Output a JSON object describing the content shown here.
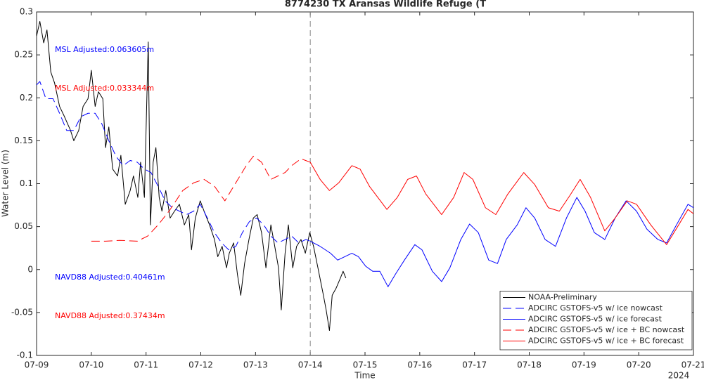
{
  "chart_data": {
    "type": "line",
    "title": "8774230 TX Aransas Wildlife Refuge (T",
    "xlabel": "Time",
    "ylabel": "Water Level (m)",
    "year_label": "2024",
    "xlim": [
      9,
      21
    ],
    "xticks": [
      {
        "value": 9,
        "label": "07-09"
      },
      {
        "value": 10,
        "label": "07-10"
      },
      {
        "value": 11,
        "label": "07-11"
      },
      {
        "value": 12,
        "label": "07-12"
      },
      {
        "value": 13,
        "label": "07-13"
      },
      {
        "value": 14,
        "label": "07-14"
      },
      {
        "value": 15,
        "label": "07-15"
      },
      {
        "value": 16,
        "label": "07-16"
      },
      {
        "value": 17,
        "label": "07-17"
      },
      {
        "value": 18,
        "label": "07-18"
      },
      {
        "value": 19,
        "label": "07-19"
      },
      {
        "value": 20,
        "label": "07-20"
      },
      {
        "value": 21,
        "label": "07-21"
      }
    ],
    "ylim": [
      -0.1,
      0.3
    ],
    "yticks": [
      -0.1,
      -0.05,
      0,
      0.05,
      0.1,
      0.15,
      0.2,
      0.25,
      0.3
    ],
    "grid": false,
    "legend_location": "lower right",
    "vline_x": 14,
    "vline_color": "#888888",
    "annotations": [
      {
        "text": "MSL Adjusted:0.063605m",
        "color": "#0000ff"
      },
      {
        "text": "MSL Adjusted:0.033344m",
        "color": "#ff0000"
      },
      {
        "text": "NAVD88 Adjusted:0.40461m",
        "color": "#0000ff"
      },
      {
        "text": "NAVD88 Adjusted:0.37434m",
        "color": "#ff0000"
      }
    ],
    "series": [
      {
        "name": "NOAA-Preliminary",
        "color": "#000000",
        "linestyle": "solid",
        "x": [
          9.0,
          9.06,
          9.13,
          9.19,
          9.26,
          9.33,
          9.42,
          9.51,
          9.62,
          9.68,
          9.77,
          9.85,
          9.94,
          10.0,
          10.07,
          10.13,
          10.21,
          10.26,
          10.32,
          10.39,
          10.48,
          10.54,
          10.62,
          10.71,
          10.77,
          10.85,
          10.9,
          10.97,
          11.04,
          11.08,
          11.13,
          11.18,
          11.24,
          11.29,
          11.36,
          11.44,
          11.52,
          11.61,
          11.7,
          11.78,
          11.83,
          11.9,
          11.99,
          12.06,
          12.16,
          12.25,
          12.31,
          12.39,
          12.47,
          12.52,
          12.6,
          12.67,
          12.73,
          12.8,
          12.88,
          12.96,
          13.03,
          13.11,
          13.19,
          13.28,
          13.34,
          13.42,
          13.47,
          13.54,
          13.6,
          13.68,
          13.75,
          13.83,
          13.91,
          13.99,
          14.06,
          14.14,
          14.19,
          14.24,
          14.29,
          14.35,
          14.4,
          14.47,
          14.55,
          14.6,
          14.65
        ],
        "values": [
          0.272,
          0.289,
          0.264,
          0.279,
          0.23,
          0.217,
          0.19,
          0.178,
          0.162,
          0.15,
          0.162,
          0.19,
          0.199,
          0.232,
          0.19,
          0.207,
          0.199,
          0.142,
          0.166,
          0.117,
          0.109,
          0.133,
          0.076,
          0.092,
          0.109,
          0.084,
          0.125,
          0.084,
          0.265,
          0.052,
          0.125,
          0.142,
          0.084,
          0.068,
          0.092,
          0.06,
          0.068,
          0.076,
          0.052,
          0.064,
          0.023,
          0.06,
          0.08,
          0.068,
          0.052,
          0.035,
          0.015,
          0.027,
          0.002,
          0.019,
          0.031,
          -0.006,
          -0.03,
          0.007,
          0.035,
          0.06,
          0.064,
          0.043,
          0.002,
          0.052,
          0.031,
          0.002,
          -0.047,
          0.019,
          0.052,
          0.002,
          0.027,
          0.035,
          0.019,
          0.043,
          0.027,
          0.002,
          -0.014,
          -0.03,
          -0.047,
          -0.071,
          -0.03,
          -0.022,
          -0.01,
          -0.002,
          -0.01
        ]
      },
      {
        "name": "ADCIRC GSTOFS-v5 w/ ice nowcast",
        "color": "#0000ff",
        "linestyle": "dashed",
        "x": [
          9.0,
          9.06,
          9.17,
          9.3,
          9.42,
          9.55,
          9.68,
          9.81,
          9.94,
          10.07,
          10.19,
          10.32,
          10.45,
          10.58,
          10.71,
          10.84,
          10.97,
          11.09,
          11.22,
          11.35,
          11.48,
          11.61,
          11.74,
          11.87,
          11.99,
          12.12,
          12.25,
          12.38,
          12.51,
          12.64,
          12.76,
          12.89,
          13.02,
          13.15,
          13.28,
          13.41,
          13.54,
          13.66,
          13.79,
          13.92,
          14.0
        ],
        "values": [
          0.215,
          0.219,
          0.199,
          0.199,
          0.182,
          0.162,
          0.162,
          0.178,
          0.182,
          0.182,
          0.17,
          0.15,
          0.132,
          0.121,
          0.127,
          0.125,
          0.117,
          0.113,
          0.097,
          0.08,
          0.072,
          0.068,
          0.064,
          0.068,
          0.076,
          0.06,
          0.043,
          0.031,
          0.023,
          0.027,
          0.043,
          0.056,
          0.06,
          0.052,
          0.039,
          0.031,
          0.035,
          0.039,
          0.031,
          0.035,
          0.033
        ]
      },
      {
        "name": "ADCIRC GSTOFS-v5 w/ ice forecast",
        "color": "#0000ff",
        "linestyle": "solid",
        "x": [
          14.0,
          14.18,
          14.37,
          14.5,
          14.63,
          14.76,
          14.88,
          15.01,
          15.14,
          15.27,
          15.42,
          15.55,
          15.72,
          15.91,
          16.04,
          16.23,
          16.4,
          16.55,
          16.75,
          16.91,
          17.07,
          17.26,
          17.42,
          17.58,
          17.78,
          17.94,
          18.1,
          18.29,
          18.48,
          18.68,
          18.87,
          19.02,
          19.19,
          19.38,
          19.57,
          19.77,
          19.96,
          20.15,
          20.35,
          20.51,
          20.69,
          20.9,
          21.0
        ],
        "values": [
          0.033,
          0.027,
          0.019,
          0.011,
          0.015,
          0.019,
          0.015,
          0.004,
          -0.002,
          -0.002,
          -0.02,
          -0.006,
          0.011,
          0.029,
          0.023,
          -0.002,
          -0.014,
          0.002,
          0.035,
          0.053,
          0.043,
          0.011,
          0.007,
          0.035,
          0.052,
          0.072,
          0.06,
          0.035,
          0.027,
          0.06,
          0.084,
          0.068,
          0.043,
          0.035,
          0.06,
          0.08,
          0.068,
          0.047,
          0.035,
          0.031,
          0.052,
          0.076,
          0.072
        ]
      },
      {
        "name": "ADCIRC GSTOFS-v5 w/ ice + BC nowcast",
        "color": "#ff0000",
        "linestyle": "dashed",
        "x": [
          10.0,
          10.26,
          10.52,
          10.84,
          11.03,
          11.22,
          11.42,
          11.67,
          11.87,
          12.06,
          12.25,
          12.44,
          12.64,
          12.83,
          12.96,
          13.11,
          13.28,
          13.41,
          13.54,
          13.66,
          13.83,
          14.0
        ],
        "values": [
          0.033,
          0.033,
          0.034,
          0.033,
          0.039,
          0.052,
          0.068,
          0.092,
          0.101,
          0.105,
          0.097,
          0.08,
          0.101,
          0.121,
          0.132,
          0.125,
          0.105,
          0.109,
          0.113,
          0.121,
          0.129,
          0.125
        ]
      },
      {
        "name": "ADCIRC GSTOFS-v5 w/ ice + BC forecast",
        "color": "#ff0000",
        "linestyle": "solid",
        "x": [
          14.0,
          14.18,
          14.35,
          14.52,
          14.76,
          14.91,
          15.08,
          15.4,
          15.59,
          15.78,
          15.94,
          16.11,
          16.4,
          16.62,
          16.81,
          16.97,
          17.2,
          17.39,
          17.61,
          17.9,
          18.1,
          18.35,
          18.55,
          18.74,
          18.93,
          19.12,
          19.38,
          19.57,
          19.79,
          19.96,
          20.22,
          20.51,
          20.73,
          20.9,
          21.0
        ],
        "values": [
          0.125,
          0.105,
          0.092,
          0.101,
          0.121,
          0.117,
          0.097,
          0.07,
          0.084,
          0.105,
          0.109,
          0.088,
          0.064,
          0.084,
          0.113,
          0.105,
          0.072,
          0.064,
          0.088,
          0.113,
          0.099,
          0.072,
          0.068,
          0.086,
          0.105,
          0.084,
          0.045,
          0.06,
          0.08,
          0.076,
          0.052,
          0.029,
          0.052,
          0.07,
          0.065
        ]
      }
    ]
  }
}
